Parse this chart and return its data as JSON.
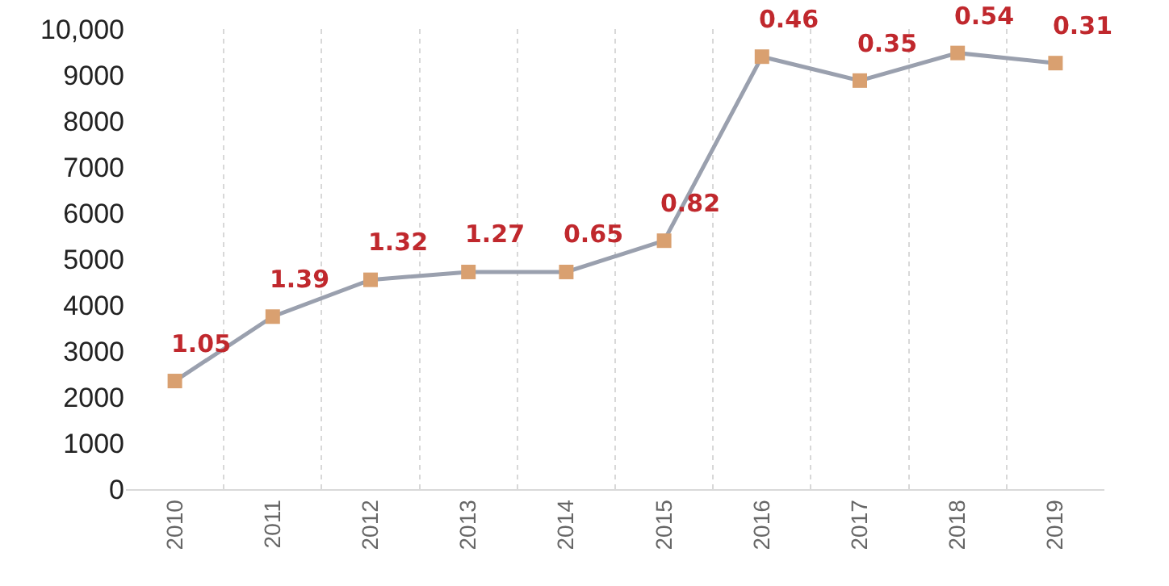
{
  "chart_data": {
    "type": "line",
    "categories": [
      "2010",
      "2011",
      "2012",
      "2013",
      "2014",
      "2015",
      "2016",
      "2017",
      "2018",
      "2019"
    ],
    "series": [
      {
        "color": "#9aa0ae",
        "colors": [
          "#d9a070",
          "#d9a070",
          "#d9a070",
          "#d9a070",
          "#d9a070",
          "#d9a070",
          "#d9a070",
          "#d9a070",
          "#d9a070",
          "#d9a070"
        ],
        "values": [
          2350,
          3750,
          4550,
          4720,
          4720,
          5400,
          9400,
          8880,
          9480,
          9260
        ]
      }
    ],
    "annotations": [
      {
        "text": "1.05",
        "x": "2010",
        "y": 2350
      },
      {
        "text": "1.39",
        "x": "2011",
        "y": 3750
      },
      {
        "text": "1.32",
        "x": "2012",
        "y": 4550
      },
      {
        "text": "1.27",
        "x": "2013",
        "y": 4720
      },
      {
        "text": "0.65",
        "x": "2014",
        "y": 4720
      },
      {
        "text": "0.82",
        "x": "2015",
        "y": 5400
      },
      {
        "text": "0.46",
        "x": "2016",
        "y": 9400
      },
      {
        "text": "0.35",
        "x": "2017",
        "y": 8880
      },
      {
        "text": "0.54",
        "x": "2018",
        "y": 9480
      },
      {
        "text": "0.31",
        "x": "2019",
        "y": 9260
      }
    ],
    "ylim": [
      0,
      10000
    ],
    "yticks": [
      0,
      1000,
      2000,
      3000,
      4000,
      5000,
      6000,
      7000,
      8000,
      9000,
      {
        "value": 10000,
        "label": "10,000"
      }
    ],
    "grid": "x",
    "marker": "square",
    "line_style": "solid"
  }
}
